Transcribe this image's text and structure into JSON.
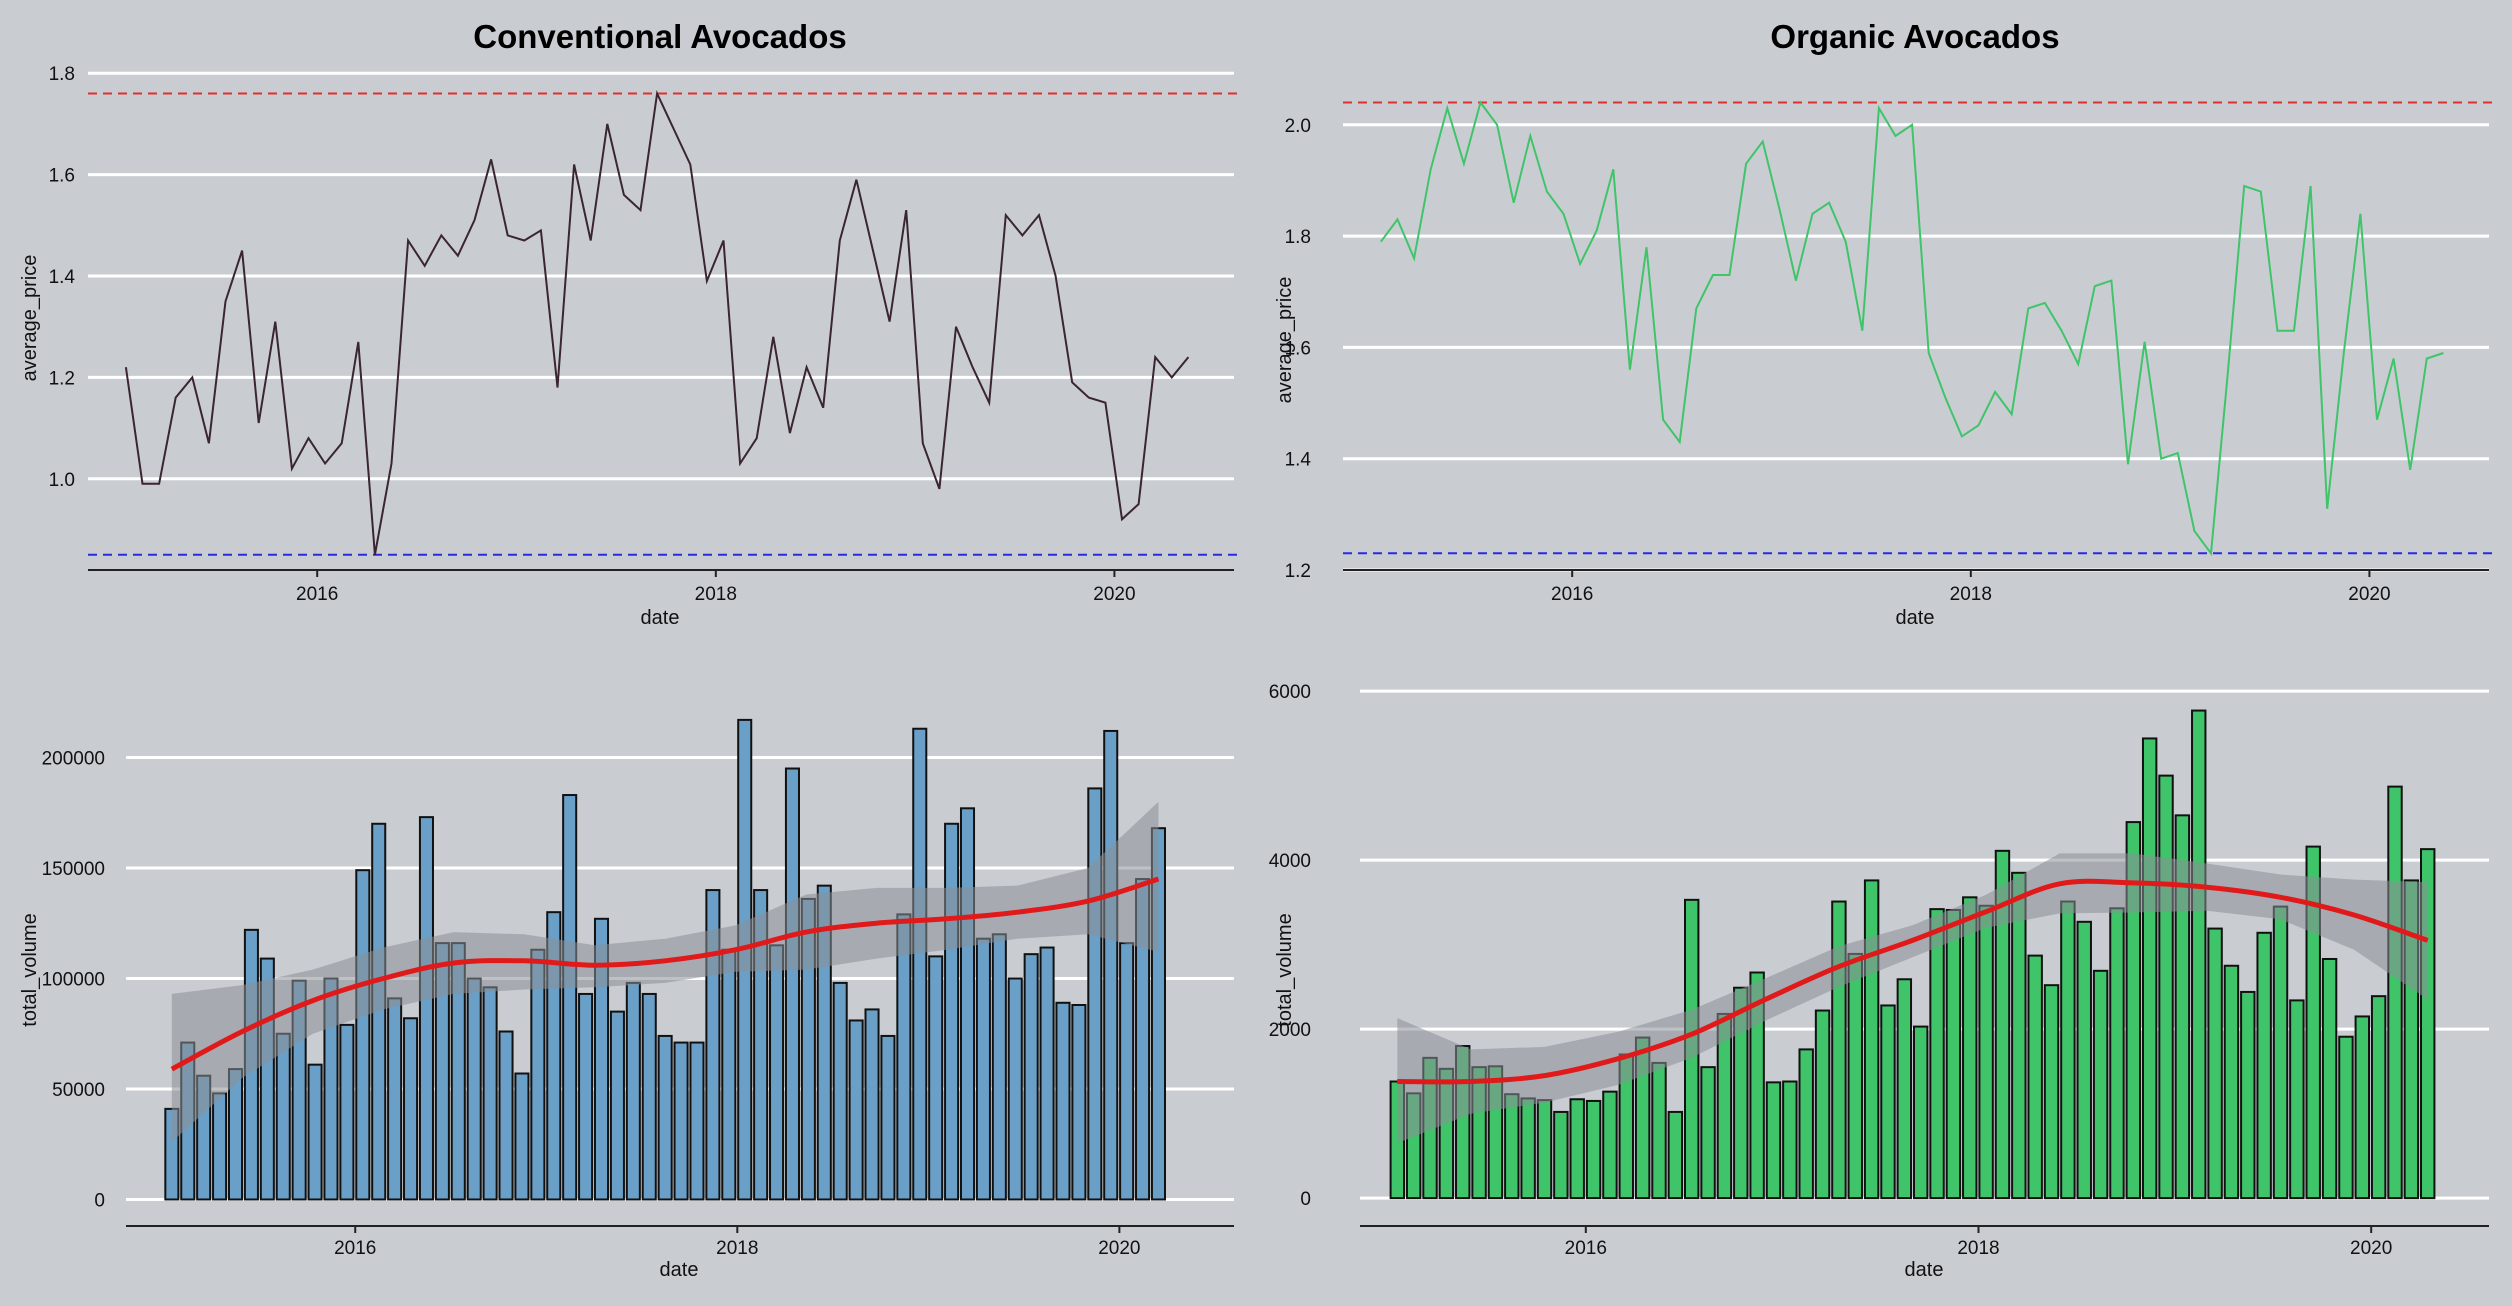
{
  "chart_data": [
    {
      "panel": "conventional-price",
      "type": "line",
      "title": "Conventional Avocados",
      "xlabel": "date",
      "ylabel": "average_price",
      "color": "#3a2530",
      "hline_max_color": "#e03030",
      "hline_min_color": "#2a2ae0",
      "ylim": [
        0.82,
        1.83
      ],
      "yticks": [
        1.0,
        1.2,
        1.4,
        1.6,
        1.8
      ],
      "ytick_labels": [
        "1.0",
        "1.2",
        "1.4",
        "1.6",
        "1.8"
      ],
      "xlim": [
        2014.85,
        2020.6
      ],
      "xticks": [
        2016,
        2018,
        2020
      ],
      "xtick_labels": [
        "2016",
        "2018",
        "2020"
      ],
      "hlines": {
        "max": 1.76,
        "min": 0.85
      },
      "x_start": 2015.04,
      "x_step": 0.0833,
      "values": [
        1.22,
        0.99,
        0.99,
        1.16,
        1.2,
        1.07,
        1.35,
        1.45,
        1.11,
        1.31,
        1.02,
        1.08,
        1.03,
        1.07,
        1.27,
        0.85,
        1.03,
        1.47,
        1.42,
        1.48,
        1.44,
        1.51,
        1.63,
        1.48,
        1.47,
        1.49,
        1.18,
        1.62,
        1.47,
        1.7,
        1.56,
        1.53,
        1.76,
        1.69,
        1.62,
        1.39,
        1.47,
        1.03,
        1.08,
        1.28,
        1.09,
        1.22,
        1.14,
        1.47,
        1.59,
        1.45,
        1.31,
        1.53,
        1.07,
        0.98,
        1.3,
        1.22,
        1.15,
        1.52,
        1.48,
        1.52,
        1.4,
        1.19,
        1.16,
        1.15,
        0.92,
        0.95,
        1.24,
        1.2,
        1.24
      ]
    },
    {
      "panel": "organic-price",
      "type": "line",
      "title": "Organic Avocados",
      "xlabel": "date",
      "ylabel": "average_price",
      "color": "#3fc46a",
      "hline_max_color": "#e03030",
      "hline_min_color": "#2a2ae0",
      "ylim": [
        1.2,
        2.12
      ],
      "yticks": [
        1.2,
        1.4,
        1.6,
        1.8,
        2.0
      ],
      "ytick_labels": [
        "1.2",
        "1.4",
        "1.6",
        "1.8",
        "2.0"
      ],
      "xlim": [
        2014.85,
        2020.6
      ],
      "xticks": [
        2016,
        2018,
        2020
      ],
      "xtick_labels": [
        "2016",
        "2018",
        "2020"
      ],
      "hlines": {
        "max": 2.04,
        "min": 1.23
      },
      "x_start": 2015.04,
      "x_step": 0.0833,
      "values": [
        1.79,
        1.83,
        1.76,
        1.92,
        2.03,
        1.93,
        2.04,
        2.0,
        1.86,
        1.98,
        1.88,
        1.84,
        1.75,
        1.81,
        1.92,
        1.56,
        1.78,
        1.47,
        1.43,
        1.67,
        1.73,
        1.73,
        1.93,
        1.97,
        1.85,
        1.72,
        1.84,
        1.86,
        1.79,
        1.63,
        2.03,
        1.98,
        2.0,
        1.59,
        1.51,
        1.44,
        1.46,
        1.52,
        1.48,
        1.67,
        1.68,
        1.63,
        1.57,
        1.71,
        1.72,
        1.39,
        1.61,
        1.4,
        1.41,
        1.27,
        1.23,
        1.55,
        1.89,
        1.88,
        1.63,
        1.63,
        1.89,
        1.31,
        1.59,
        1.84,
        1.47,
        1.58,
        1.38,
        1.58,
        1.59
      ]
    },
    {
      "panel": "conventional-volume",
      "type": "bar",
      "xlabel": "date",
      "ylabel": "total_volume",
      "bar_color": "#6a9fc8",
      "ylim": [
        -12000,
        226000
      ],
      "yticks": [
        0,
        50000,
        100000,
        150000,
        200000
      ],
      "ytick_labels": [
        "0",
        "50000",
        "100000",
        "150000",
        "200000"
      ],
      "xlim": [
        2014.8,
        2020.6
      ],
      "xticks": [
        2016,
        2018,
        2020
      ],
      "xtick_labels": [
        "2016",
        "2018",
        "2020"
      ],
      "x_start": 2015.04,
      "x_step": 0.0833,
      "values": [
        41000,
        71000,
        56000,
        48000,
        59000,
        122000,
        109000,
        75000,
        99000,
        61000,
        100000,
        79000,
        149000,
        170000,
        91000,
        82000,
        173000,
        116000,
        116000,
        100000,
        96000,
        76000,
        57000,
        113000,
        130000,
        183000,
        93000,
        127000,
        85000,
        98000,
        93000,
        74000,
        71000,
        71000,
        140000,
        113000,
        217000,
        140000,
        115000,
        195000,
        136000,
        142000,
        98000,
        81000,
        86000,
        74000,
        129000,
        213000,
        110000,
        170000,
        177000,
        118000,
        120000,
        100000,
        111000,
        114000,
        89000,
        88000,
        186000,
        212000,
        116000,
        145000,
        168000
      ],
      "trend": [
        59000,
        76000,
        90000,
        100000,
        107000,
        108000,
        106000,
        108000,
        113000,
        121000,
        125000,
        127000,
        130000,
        135000,
        145000
      ],
      "band_upper": [
        93000,
        97000,
        104000,
        114000,
        121000,
        120000,
        115000,
        118000,
        124000,
        138000,
        141000,
        141000,
        142000,
        150000,
        180000
      ],
      "band_lower": [
        26000,
        55000,
        75000,
        86000,
        93000,
        95000,
        96000,
        98000,
        103000,
        104000,
        109000,
        113000,
        118000,
        120000,
        112000
      ]
    },
    {
      "panel": "organic-volume",
      "type": "bar",
      "xlabel": "date",
      "ylabel": "total_volume",
      "bar_color": "#3fc46a",
      "ylim": [
        -330,
        6250
      ],
      "yticks": [
        0,
        2000,
        4000,
        6000
      ],
      "ytick_labels": [
        "0",
        "2000",
        "4000",
        "6000"
      ],
      "xlim": [
        2014.85,
        2020.6
      ],
      "xticks": [
        2016,
        2018,
        2020
      ],
      "xtick_labels": [
        "2016",
        "2018",
        "2020"
      ],
      "x_start": 2015.04,
      "x_step": 0.0833,
      "values": [
        1380,
        1240,
        1660,
        1530,
        1800,
        1550,
        1560,
        1230,
        1180,
        1160,
        1020,
        1170,
        1150,
        1260,
        1700,
        1900,
        1600,
        1020,
        3530,
        1550,
        2180,
        2490,
        2670,
        1370,
        1380,
        1760,
        2220,
        3510,
        2890,
        3760,
        2280,
        2590,
        2030,
        3420,
        3410,
        3560,
        3460,
        4110,
        3850,
        2870,
        2520,
        3510,
        3270,
        2690,
        3430,
        4450,
        5440,
        5000,
        4530,
        5770,
        3190,
        2750,
        2440,
        3140,
        3450,
        2340,
        4160,
        2830,
        1910,
        2150,
        2390,
        4870,
        3760,
        4130
      ],
      "trend": [
        1380,
        1380,
        1450,
        1650,
        1940,
        2350,
        2740,
        3050,
        3390,
        3720,
        3730,
        3680,
        3560,
        3350,
        3050
      ],
      "band_upper": [
        2130,
        1760,
        1790,
        1970,
        2230,
        2600,
        2980,
        3230,
        3590,
        4080,
        4080,
        3960,
        3830,
        3770,
        3740
      ],
      "band_lower": [
        650,
        1000,
        1130,
        1340,
        1660,
        2100,
        2500,
        2850,
        3200,
        3370,
        3380,
        3400,
        3300,
        2940,
        2350
      ]
    }
  ]
}
